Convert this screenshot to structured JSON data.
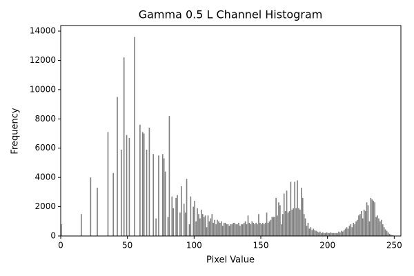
{
  "chart_data": {
    "type": "histogram",
    "title": "Gamma 0.5 L Channel Histogram",
    "x_label": "Pixel Value",
    "y_label": "Frequency",
    "color": "#808080",
    "bins": [
      0,
      1,
      2,
      3,
      4,
      5,
      6,
      7,
      8,
      9,
      10,
      11,
      12,
      13,
      14,
      15,
      16,
      17,
      18,
      19,
      20,
      21,
      22,
      23,
      24,
      25,
      26,
      27,
      28,
      29,
      30,
      31,
      32,
      33,
      34,
      35,
      36,
      37,
      38,
      39,
      40,
      41,
      42,
      43,
      44,
      45,
      46,
      47,
      48,
      49,
      50,
      51,
      52,
      53,
      54,
      55,
      56,
      57,
      58,
      59,
      60,
      61,
      62,
      63,
      64,
      65,
      66,
      67,
      68,
      69,
      70,
      71,
      72,
      73,
      74,
      75,
      76,
      77,
      78,
      79,
      80,
      81,
      82,
      83,
      84,
      85,
      86,
      87,
      88,
      89,
      90,
      91,
      92,
      93,
      94,
      95,
      96,
      97,
      98,
      99,
      100,
      101,
      102,
      103,
      104,
      105,
      106,
      107,
      108,
      109,
      110,
      111,
      112,
      113,
      114,
      115,
      116,
      117,
      118,
      119,
      120,
      121,
      122,
      123,
      124,
      125,
      126,
      127,
      128,
      129,
      130,
      131,
      132,
      133,
      134,
      135,
      136,
      137,
      138,
      139,
      140,
      141,
      142,
      143,
      144,
      145,
      146,
      147,
      148,
      149,
      150,
      151,
      152,
      153,
      154,
      155,
      156,
      157,
      158,
      159,
      160,
      161,
      162,
      163,
      164,
      165,
      166,
      167,
      168,
      169,
      170,
      171,
      172,
      173,
      174,
      175,
      176,
      177,
      178,
      179,
      180,
      181,
      182,
      183,
      184,
      185,
      186,
      187,
      188,
      189,
      190,
      191,
      192,
      193,
      194,
      195,
      196,
      197,
      198,
      199,
      200,
      201,
      202,
      203,
      204,
      205,
      206,
      207,
      208,
      209,
      210,
      211,
      212,
      213,
      214,
      215,
      216,
      217,
      218,
      219,
      220,
      221,
      222,
      223,
      224,
      225,
      226,
      227,
      228,
      229,
      230,
      231,
      232,
      233,
      234,
      235,
      236,
      237,
      238,
      239,
      240,
      241,
      242,
      243,
      244,
      245,
      246,
      247,
      248,
      249,
      250,
      251,
      252,
      253,
      254,
      255,
      256
    ],
    "values": [
      800,
      0,
      0,
      0,
      0,
      0,
      0,
      0,
      0,
      0,
      0,
      0,
      0,
      0,
      0,
      1500,
      0,
      0,
      0,
      0,
      0,
      0,
      4000,
      0,
      0,
      0,
      0,
      3300,
      0,
      0,
      0,
      0,
      0,
      0,
      0,
      7100,
      0,
      0,
      0,
      4300,
      0,
      0,
      9500,
      0,
      0,
      5900,
      0,
      12200,
      0,
      6900,
      0,
      6700,
      0,
      0,
      0,
      13600,
      0,
      0,
      0,
      7600,
      0,
      7100,
      7000,
      0,
      5900,
      0,
      7400,
      0,
      0,
      5600,
      0,
      1200,
      0,
      5500,
      0,
      0,
      5600,
      5300,
      4400,
      0,
      1300,
      8200,
      0,
      2700,
      1900,
      0,
      2600,
      2800,
      0,
      1600,
      3400,
      0,
      2200,
      1600,
      3900,
      0,
      800,
      2700,
      0,
      2000,
      2400,
      1000,
      1900,
      1500,
      1200,
      1800,
      1500,
      1300,
      1400,
      600,
      1400,
      1000,
      1200,
      1500,
      900,
      1100,
      800,
      1100,
      1000,
      900,
      1000,
      700,
      900,
      900,
      800,
      800,
      700,
      800,
      800,
      900,
      900,
      800,
      800,
      900,
      700,
      800,
      800,
      900,
      1000,
      800,
      1400,
      900,
      800,
      1000,
      900,
      800,
      900,
      800,
      1500,
      900,
      800,
      900,
      800,
      900,
      1600,
      900,
      1000,
      1100,
      1300,
      1300,
      1300,
      2600,
      1400,
      2300,
      2100,
      800,
      1500,
      2900,
      1700,
      3100,
      1600,
      1700,
      3700,
      1800,
      1900,
      3700,
      1900,
      3800,
      1900,
      1800,
      3300,
      2600,
      1500,
      1200,
      700,
      900,
      500,
      600,
      400,
      500,
      400,
      350,
      300,
      250,
      300,
      200,
      250,
      200,
      200,
      250,
      200,
      200,
      250,
      200,
      200,
      200,
      200,
      200,
      300,
      250,
      350,
      300,
      400,
      500,
      600,
      500,
      700,
      800,
      600,
      900,
      800,
      1000,
      1100,
      1400,
      1500,
      1700,
      1200,
      1800,
      1700,
      2300,
      2100,
      1000,
      2600,
      2500,
      2400,
      2300,
      1300,
      1400,
      1200,
      1000,
      1100,
      800,
      600,
      450,
      350,
      250,
      150,
      100,
      50,
      30,
      0,
      0,
      0,
      0,
      0,
      0
    ],
    "xlim": [
      0,
      255
    ],
    "xticks": [
      0,
      50,
      100,
      150,
      200,
      250
    ],
    "ylim": [
      0,
      14380
    ],
    "yticks": [
      0,
      2000,
      4000,
      6000,
      8000,
      10000,
      12000,
      14000
    ]
  }
}
